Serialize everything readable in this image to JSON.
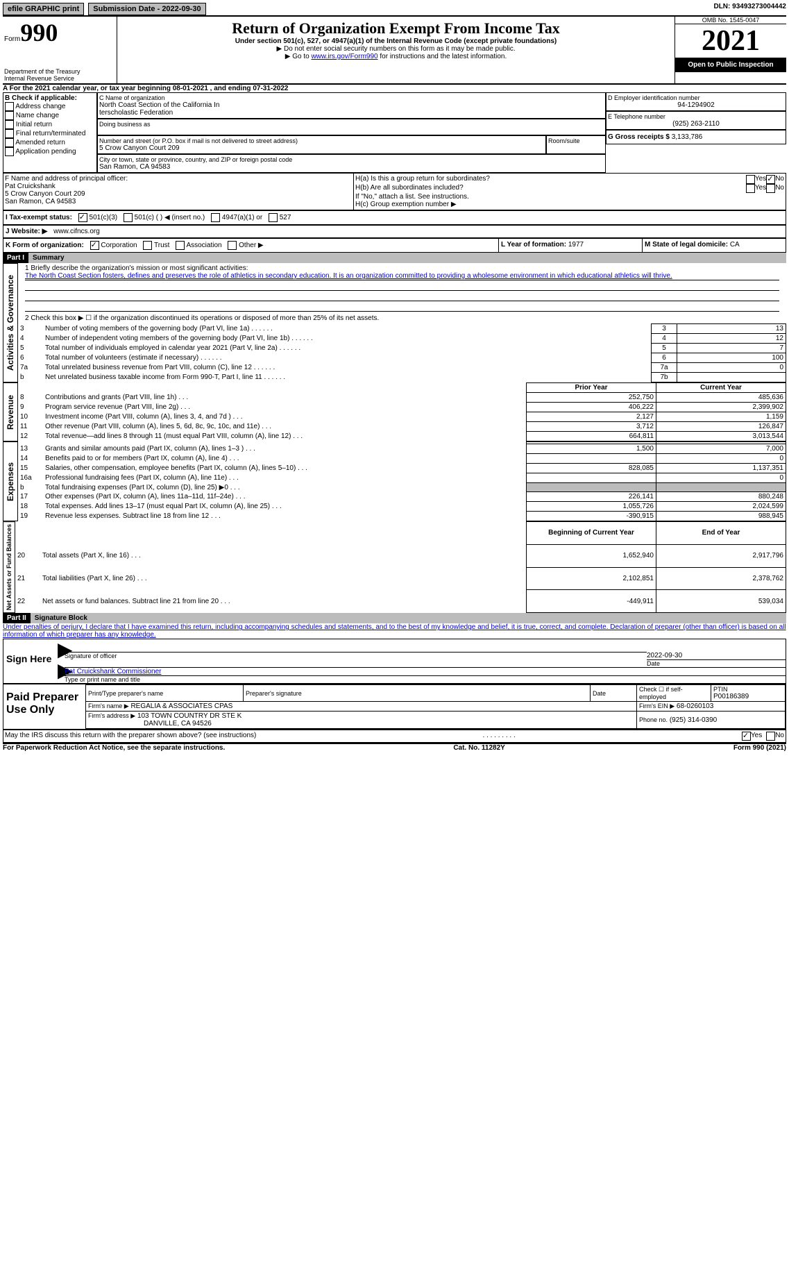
{
  "header": {
    "efile": "efile GRAPHIC print",
    "sub_date_label": "Submission Date - 2022-09-30",
    "dln_label": "DLN: 93493273004442",
    "form_word": "Form",
    "form_num": "990",
    "title": "Return of Organization Exempt From Income Tax",
    "subtitle": "Under section 501(c), 527, or 4947(a)(1) of the Internal Revenue Code (except private foundations)",
    "note1": "▶ Do not enter social security numbers on this form as it may be made public.",
    "note2_pre": "▶ Go to ",
    "note2_link": "www.irs.gov/Form990",
    "note2_post": " for instructions and the latest information.",
    "dept": "Department of the Treasury\nInternal Revenue Service",
    "omb": "OMB No. 1545-0047",
    "year": "2021",
    "open": "Open to Public Inspection"
  },
  "sectionA": {
    "line": "A For the 2021 calendar year, or tax year beginning 08-01-2021    , and ending 07-31-2022",
    "b_label": "B Check if applicable:",
    "b_items": [
      "Address change",
      "Name change",
      "Initial return",
      "Final return/terminated",
      "Amended return",
      "Application pending"
    ],
    "c_label": "C Name of organization",
    "org1": "North Coast Section of the California In",
    "org2": "terscholastic Federation",
    "dba": "Doing business as",
    "addr_label": "Number and street (or P.O. box if mail is not delivered to street address)",
    "room": "Room/suite",
    "addr": "5 Crow Canyon Court 209",
    "city_label": "City or town, state or province, country, and ZIP or foreign postal code",
    "city": "San Ramon, CA  94583",
    "d_label": "D Employer identification number",
    "ein": "94-1294902",
    "e_label": "E Telephone number",
    "phone": "(925) 263-2110",
    "g_label": "G Gross receipts $",
    "g_val": "3,133,786",
    "f_label": "F  Name and address of principal officer:",
    "officer1": "Pat Cruickshank",
    "officer2": "5 Crow Canyon Court 209",
    "officer3": "San Ramon, CA  94583",
    "ha": "H(a)  Is this a group return for subordinates?",
    "hb": "H(b)  Are all subordinates included?",
    "hb_note": "If \"No,\" attach a list. See instructions.",
    "hc": "H(c)  Group exemption number ▶",
    "yes": "Yes",
    "no": "No",
    "i_label": "I    Tax-exempt status:",
    "i_501c3": "501(c)(3)",
    "i_501c": "501(c) (   ) ◀ (insert no.)",
    "i_4947": "4947(a)(1) or",
    "i_527": "527",
    "j_label": "J   Website: ▶",
    "website": "www.cifncs.org",
    "k_label": "K Form of organization:",
    "k_corp": "Corporation",
    "k_trust": "Trust",
    "k_assoc": "Association",
    "k_other": "Other ▶",
    "l_label": "L Year of formation:",
    "l_val": "1977",
    "m_label": "M State of legal domicile:",
    "m_val": "CA"
  },
  "part1": {
    "label": "Part I",
    "title": "Summary",
    "sideA": "Activities & Governance",
    "sideR": "Revenue",
    "sideE": "Expenses",
    "sideN": "Net Assets or Fund Balances",
    "l1a": "1   Briefly describe the organization's mission or most significant activities:",
    "l1b": "The North Coast Section fosters, defines and preserves the role of athletics in secondary education. It is an organization committed to providing a wholesome environment in which educational athletics will thrive.",
    "l2": "2   Check this box ▶ ☐  if the organization discontinued its operations or disposed of more than 25% of its net assets.",
    "rows": [
      {
        "n": "3",
        "t": "Number of voting members of the governing body (Part VI, line 1a)",
        "c": "3",
        "v": "13"
      },
      {
        "n": "4",
        "t": "Number of independent voting members of the governing body (Part VI, line 1b)",
        "c": "4",
        "v": "12"
      },
      {
        "n": "5",
        "t": "Total number of individuals employed in calendar year 2021 (Part V, line 2a)",
        "c": "5",
        "v": "7"
      },
      {
        "n": "6",
        "t": "Total number of volunteers (estimate if necessary)",
        "c": "6",
        "v": "100"
      },
      {
        "n": "7a",
        "t": "Total unrelated business revenue from Part VIII, column (C), line 12",
        "c": "7a",
        "v": "0"
      },
      {
        "n": "b",
        "t": "Net unrelated business taxable income from Form 990-T, Part I, line 11",
        "c": "7b",
        "v": ""
      }
    ],
    "prior": "Prior Year",
    "current": "Current Year",
    "rev": [
      {
        "n": "8",
        "t": "Contributions and grants (Part VIII, line 1h)",
        "p": "252,750",
        "c": "485,636"
      },
      {
        "n": "9",
        "t": "Program service revenue (Part VIII, line 2g)",
        "p": "406,222",
        "c": "2,399,902"
      },
      {
        "n": "10",
        "t": "Investment income (Part VIII, column (A), lines 3, 4, and 7d )",
        "p": "2,127",
        "c": "1,159"
      },
      {
        "n": "11",
        "t": "Other revenue (Part VIII, column (A), lines 5, 6d, 8c, 9c, 10c, and 11e)",
        "p": "3,712",
        "c": "126,847"
      },
      {
        "n": "12",
        "t": "Total revenue—add lines 8 through 11 (must equal Part VIII, column (A), line 12)",
        "p": "664,811",
        "c": "3,013,544"
      }
    ],
    "exp": [
      {
        "n": "13",
        "t": "Grants and similar amounts paid (Part IX, column (A), lines 1–3 )",
        "p": "1,500",
        "c": "7,000"
      },
      {
        "n": "14",
        "t": "Benefits paid to or for members (Part IX, column (A), line 4)",
        "p": "",
        "c": "0"
      },
      {
        "n": "15",
        "t": "Salaries, other compensation, employee benefits (Part IX, column (A), lines 5–10)",
        "p": "828,085",
        "c": "1,137,351"
      },
      {
        "n": "16a",
        "t": "Professional fundraising fees (Part IX, column (A), line 11e)",
        "p": "",
        "c": "0"
      },
      {
        "n": "b",
        "t": "Total fundraising expenses (Part IX, column (D), line 25) ▶0",
        "p": "shade",
        "c": "shade"
      },
      {
        "n": "17",
        "t": "Other expenses (Part IX, column (A), lines 11a–11d, 11f–24e)",
        "p": "226,141",
        "c": "880,248"
      },
      {
        "n": "18",
        "t": "Total expenses. Add lines 13–17 (must equal Part IX, column (A), line 25)",
        "p": "1,055,726",
        "c": "2,024,599"
      },
      {
        "n": "19",
        "t": "Revenue less expenses. Subtract line 18 from line 12",
        "p": "-390,915",
        "c": "988,945"
      }
    ],
    "beg": "Beginning of Current Year",
    "end": "End of Year",
    "net": [
      {
        "n": "20",
        "t": "Total assets (Part X, line 16)",
        "p": "1,652,940",
        "c": "2,917,796"
      },
      {
        "n": "21",
        "t": "Total liabilities (Part X, line 26)",
        "p": "2,102,851",
        "c": "2,378,762"
      },
      {
        "n": "22",
        "t": "Net assets or fund balances. Subtract line 21 from line 20",
        "p": "-449,911",
        "c": "539,034"
      }
    ]
  },
  "part2": {
    "label": "Part II",
    "title": "Signature Block",
    "decl": "Under penalties of perjury, I declare that I have examined this return, including accompanying schedules and statements, and to the best of my knowledge and belief, it is true, correct, and complete. Declaration of preparer (other than officer) is based on all information of which preparer has any knowledge.",
    "sign_here": "Sign Here",
    "sig_label": "Signature of officer",
    "date": "2022-09-30",
    "date_label": "Date",
    "name": "Pat Cruickshank  Commissioner",
    "name_label": "Type or print name and title",
    "paid": "Paid Preparer Use Only",
    "prep_name_label": "Print/Type preparer's name",
    "prep_sig_label": "Preparer's signature",
    "prep_date_label": "Date",
    "check_self": "Check ☐ if self-employed",
    "ptin_label": "PTIN",
    "ptin": "P00186389",
    "firm_name_label": "Firm's name      ▶",
    "firm_name": "REGALIA & ASSOCIATES CPAS",
    "firm_ein_label": "Firm's EIN ▶",
    "firm_ein": "68-0260103",
    "firm_addr_label": "Firm's address ▶",
    "firm_addr1": "103 TOWN COUNTRY DR STE K",
    "firm_addr2": "DANVILLE, CA  94526",
    "firm_phone_label": "Phone no.",
    "firm_phone": "(925) 314-0390",
    "discuss": "May the IRS discuss this return with the preparer shown above? (see instructions)",
    "footer_l": "For Paperwork Reduction Act Notice, see the separate instructions.",
    "footer_c": "Cat. No. 11282Y",
    "footer_r": "Form 990 (2021)"
  }
}
